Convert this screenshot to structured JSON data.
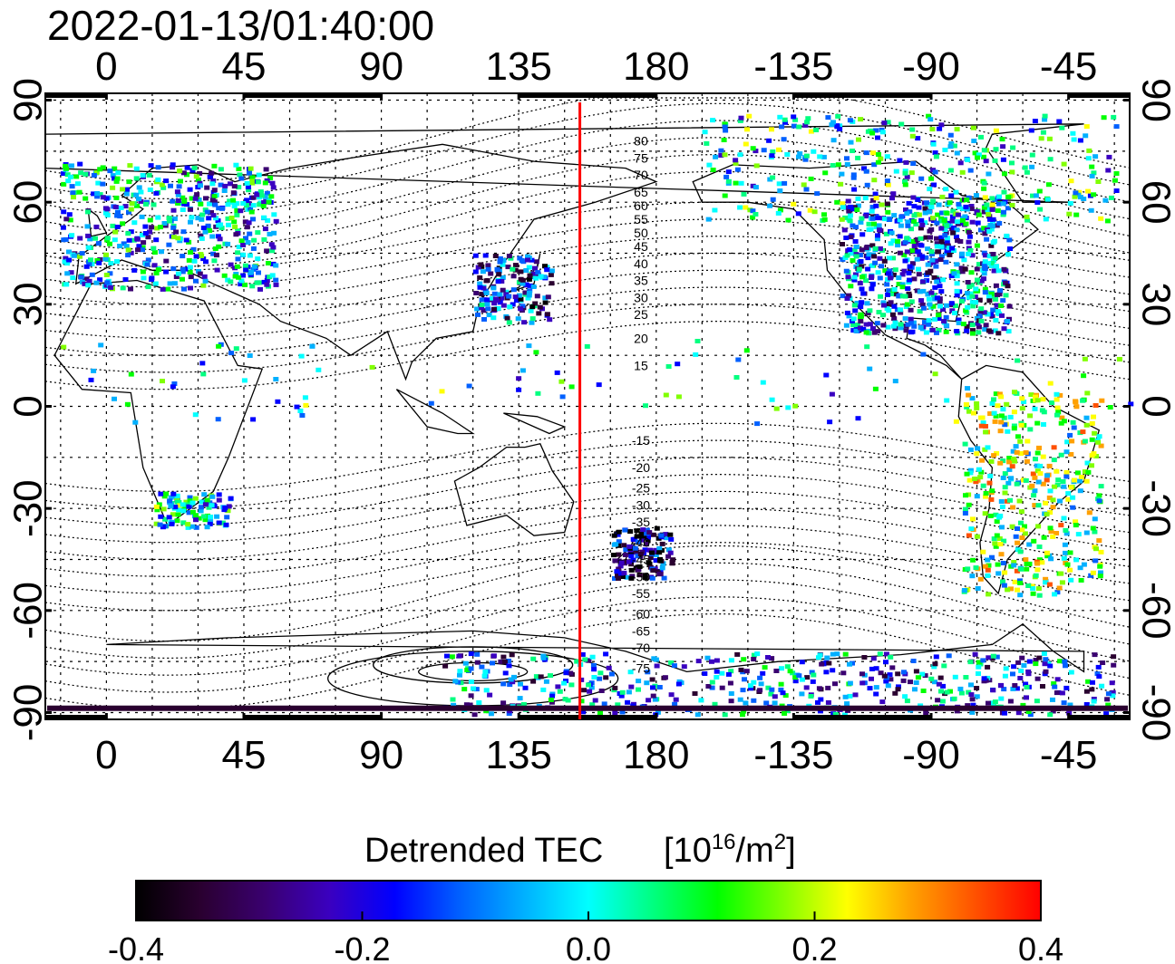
{
  "title": "2022-01-13/01:40:00",
  "x_ticks": [
    "0",
    "45",
    "90",
    "135",
    "180",
    "-135",
    "-90",
    "-45"
  ],
  "x_tick_values": [
    0,
    45,
    90,
    135,
    180,
    225,
    270,
    315
  ],
  "y_ticks": [
    "90",
    "60",
    "30",
    "0",
    "-30",
    "-60",
    "-90"
  ],
  "y_tick_values": [
    90,
    60,
    30,
    0,
    -30,
    -60,
    -90
  ],
  "lon_range": [
    -20,
    335
  ],
  "lat_range": [
    -92,
    92
  ],
  "grid": true,
  "marker_line_lon": 155,
  "marker_line_color": "#ff0000",
  "contour_labels_north": [
    "80",
    "75",
    "70",
    "65",
    "60",
    "55",
    "50",
    "45",
    "40",
    "35",
    "30",
    "25",
    "20",
    "15"
  ],
  "contour_labels_south": [
    "-15",
    "-20",
    "-25",
    "-30",
    "-35",
    "-40",
    "-45",
    "-50",
    "-55",
    "-60",
    "-65",
    "-70",
    "-75"
  ],
  "colorbar": {
    "label": "Detrended TEC",
    "unit_prefix": "[10",
    "unit_exp1": "16",
    "unit_mid": "/m",
    "unit_exp2": "2",
    "unit_suffix": "]",
    "min": -0.4,
    "max": 0.4,
    "tick_labels": [
      "-0.4",
      "-0.2",
      "0.0",
      "0.2",
      "0.4"
    ],
    "colors": [
      "#000000",
      "#2a0030",
      "#3a0070",
      "#3a00c0",
      "#0000ff",
      "#0060ff",
      "#00b0ff",
      "#00ffff",
      "#00ff80",
      "#00ff00",
      "#80ff00",
      "#ffff00",
      "#ffa000",
      "#ff5000",
      "#ff0000"
    ]
  }
}
